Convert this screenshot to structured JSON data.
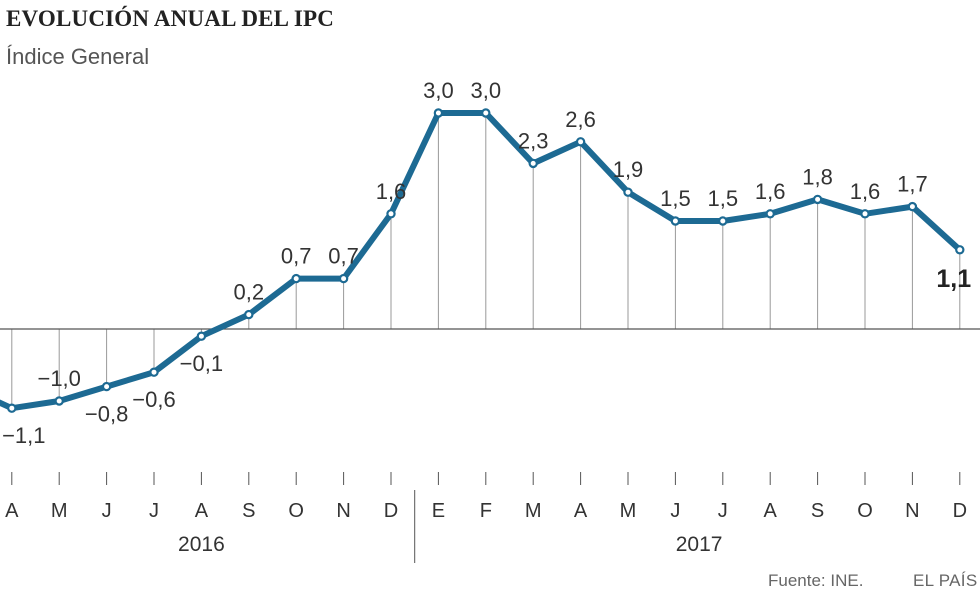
{
  "title": "EVOLUCIÓN ANUAL DEL IPC",
  "subtitle": "Índice General",
  "source": "Fuente: INE.",
  "brand": "EL PAÍS",
  "colors": {
    "line": "#1d6a93",
    "point_fill": "#ffffff",
    "axis": "#555555",
    "drop_line": "#999999"
  },
  "chart_data": {
    "type": "line",
    "title": "EVOLUCIÓN ANUAL DEL IPC",
    "subtitle": "Índice General",
    "xlabel": "",
    "ylabel": "",
    "grid": false,
    "legend": "none",
    "x": [
      "M",
      "A",
      "M",
      "J",
      "J",
      "A",
      "S",
      "O",
      "N",
      "D",
      "E",
      "F",
      "M",
      "A",
      "M",
      "J",
      "J",
      "A",
      "S",
      "O",
      "N",
      "D"
    ],
    "visible_month_labels": [
      "A",
      "M",
      "J",
      "J",
      "A",
      "S",
      "O",
      "N",
      "D",
      "E",
      "F",
      "M",
      "A",
      "M",
      "J",
      "J",
      "A",
      "S",
      "O",
      "N",
      "D"
    ],
    "years": [
      {
        "label": "2016",
        "from": 1,
        "to": 9
      },
      {
        "label": "2017",
        "from": 10,
        "to": 21
      }
    ],
    "values": [
      -0.8,
      -1.1,
      -1.0,
      -0.8,
      -0.6,
      -0.1,
      0.2,
      0.7,
      0.7,
      1.6,
      3.0,
      3.0,
      2.3,
      2.6,
      1.9,
      1.5,
      1.5,
      1.6,
      1.8,
      1.6,
      1.7,
      1.1
    ],
    "data_labels": [
      "",
      "−1,1",
      "−1,0",
      "−0,8",
      "−0,6",
      "−0,1",
      "0,2",
      "0,7",
      "0,7",
      "1,6",
      "3,0",
      "3,0",
      "2,3",
      "2,6",
      "1,9",
      "1,5",
      "1,5",
      "1,6",
      "1,8",
      "1,6",
      "1,7",
      "1,1"
    ],
    "ylim": [
      -1.3,
      3.0
    ]
  }
}
